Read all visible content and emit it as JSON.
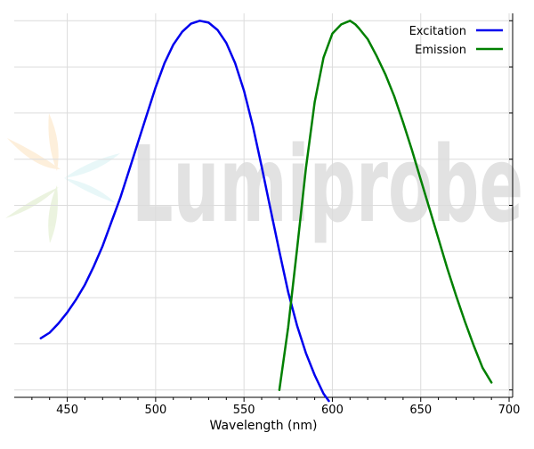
{
  "chart_data": {
    "type": "line",
    "title": "",
    "xlabel": "Wavelength (nm)",
    "ylabel": "",
    "xlim": [
      420,
      702
    ],
    "ylim": [
      -0.02,
      1.02
    ],
    "xticks": [
      450,
      500,
      550,
      600,
      650,
      700
    ],
    "xtick_labels": [
      "450",
      "500",
      "550",
      "600",
      "650",
      "700"
    ],
    "grid": true,
    "legend_position": "top-right",
    "series": [
      {
        "name": "Excitation",
        "color": "#0000ee",
        "x": [
          435,
          440,
          445,
          450,
          455,
          460,
          465,
          470,
          475,
          480,
          485,
          490,
          495,
          500,
          505,
          510,
          515,
          520,
          525,
          530,
          535,
          540,
          545,
          550,
          555,
          560,
          565,
          570,
          575,
          580,
          585,
          590,
          595,
          598
        ],
        "y": [
          0.14,
          0.155,
          0.18,
          0.21,
          0.245,
          0.285,
          0.335,
          0.39,
          0.455,
          0.52,
          0.595,
          0.67,
          0.745,
          0.82,
          0.885,
          0.935,
          0.97,
          0.992,
          1.0,
          0.995,
          0.975,
          0.94,
          0.885,
          0.81,
          0.715,
          0.605,
          0.49,
          0.375,
          0.265,
          0.175,
          0.1,
          0.04,
          -0.01,
          -0.03
        ]
      },
      {
        "name": "Emission",
        "color": "#008000",
        "x": [
          570,
          575,
          580,
          585,
          590,
          595,
          600,
          605,
          610,
          613,
          615,
          620,
          625,
          630,
          635,
          640,
          645,
          650,
          655,
          660,
          665,
          670,
          675,
          680,
          685,
          690
        ],
        "y": [
          0.0,
          0.17,
          0.38,
          0.6,
          0.78,
          0.9,
          0.965,
          0.99,
          1.0,
          0.99,
          0.98,
          0.95,
          0.905,
          0.855,
          0.795,
          0.725,
          0.65,
          0.57,
          0.49,
          0.41,
          0.33,
          0.255,
          0.185,
          0.12,
          0.06,
          0.02
        ]
      }
    ],
    "watermark": "Lumiprobe"
  }
}
